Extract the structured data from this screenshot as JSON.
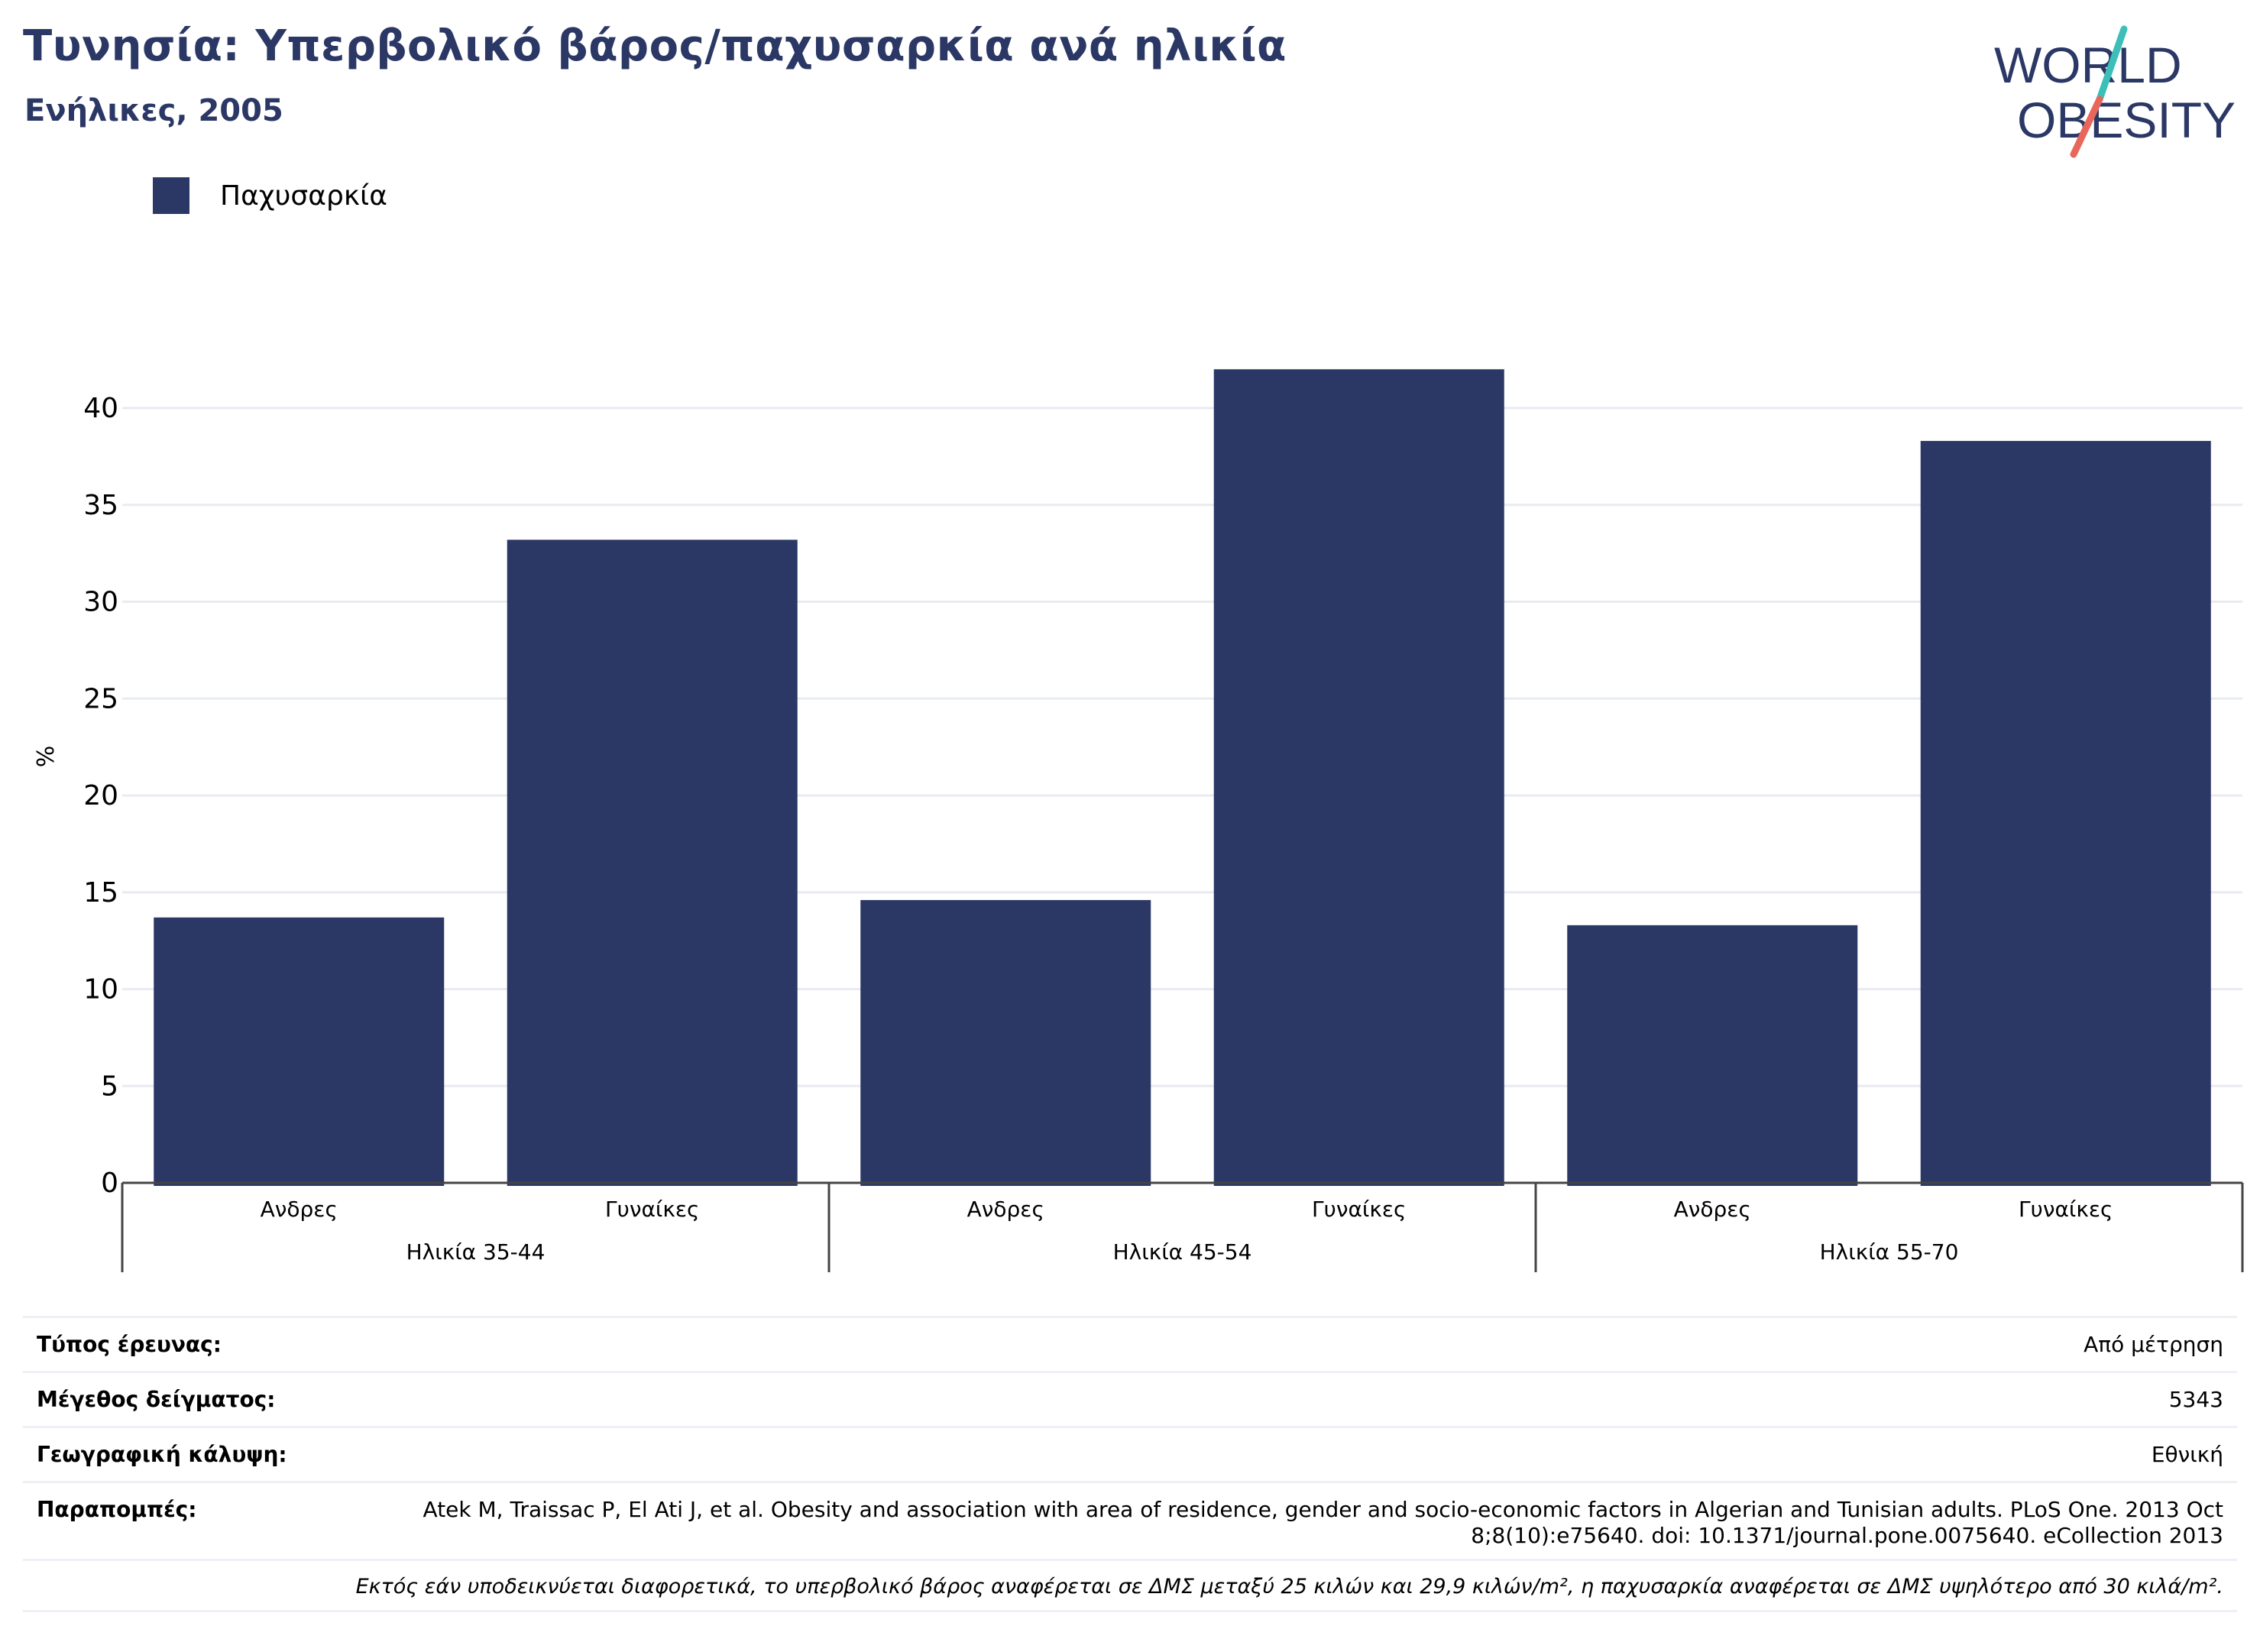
{
  "header": {
    "title": "Τυνησία: Υπερβολικό βάρος/παχυσαρκία ανά ηλικία",
    "subtitle": "Ενήλικες, 2005"
  },
  "logo": {
    "line1": "WORLD",
    "line2": "OBESITY",
    "colors": {
      "text": "#2b3865",
      "slash_top": "#3bbfb8",
      "slash_bottom": "#e8675a"
    }
  },
  "legend": {
    "label": "Παχυσαρκία",
    "color": "#2b3865"
  },
  "chart_data": {
    "type": "bar",
    "title": "Τυνησία: Υπερβολικό βάρος/παχυσαρκία ανά ηλικία",
    "subtitle": "Ενήλικες, 2005",
    "ylabel": "%",
    "ylim": [
      0,
      42
    ],
    "yticks": [
      0,
      5,
      10,
      15,
      20,
      25,
      30,
      35,
      40
    ],
    "grid": true,
    "legend_position": "top-left",
    "groups": [
      {
        "label": "Ηλικία 35-44",
        "categories": [
          "Ανδρες",
          "Γυναίκες"
        ]
      },
      {
        "label": "Ηλικία 45-54",
        "categories": [
          "Ανδρες",
          "Γυναίκες"
        ]
      },
      {
        "label": "Ηλικία 55-70",
        "categories": [
          "Ανδρες",
          "Γυναίκες"
        ]
      }
    ],
    "series": [
      {
        "name": "Παχυσαρκία",
        "color": "#2b3865",
        "values": [
          13.7,
          33.2,
          14.6,
          42.0,
          13.3,
          38.3
        ]
      }
    ]
  },
  "info": {
    "survey_type_label": "Τύπος έρευνας:",
    "survey_type_value": "Από μέτρηση",
    "sample_size_label": "Μέγεθος δείγματος:",
    "sample_size_value": "5343",
    "coverage_label": "Γεωγραφική κάλυψη:",
    "coverage_value": "Εθνική",
    "references_label": "Παραπομπές:",
    "references_value": "Atek M, Traissac P, El Ati J, et al. Obesity and association with area of residence, gender and socio-economic factors in Algerian and Tunisian adults. PLoS One. 2013 Oct 8;8(10):e75640. doi: 10.1371/journal.pone.0075640. eCollection 2013",
    "note": "Εκτός εάν υποδεικνύεται διαφορετικά, το υπερβολικό βάρος αναφέρεται σε ΔΜΣ μεταξύ 25 κιλών και 29,9 κιλών/m², η παχυσαρκία αναφέρεται σε ΔΜΣ υψηλότερο από 30 κιλά/m²."
  }
}
